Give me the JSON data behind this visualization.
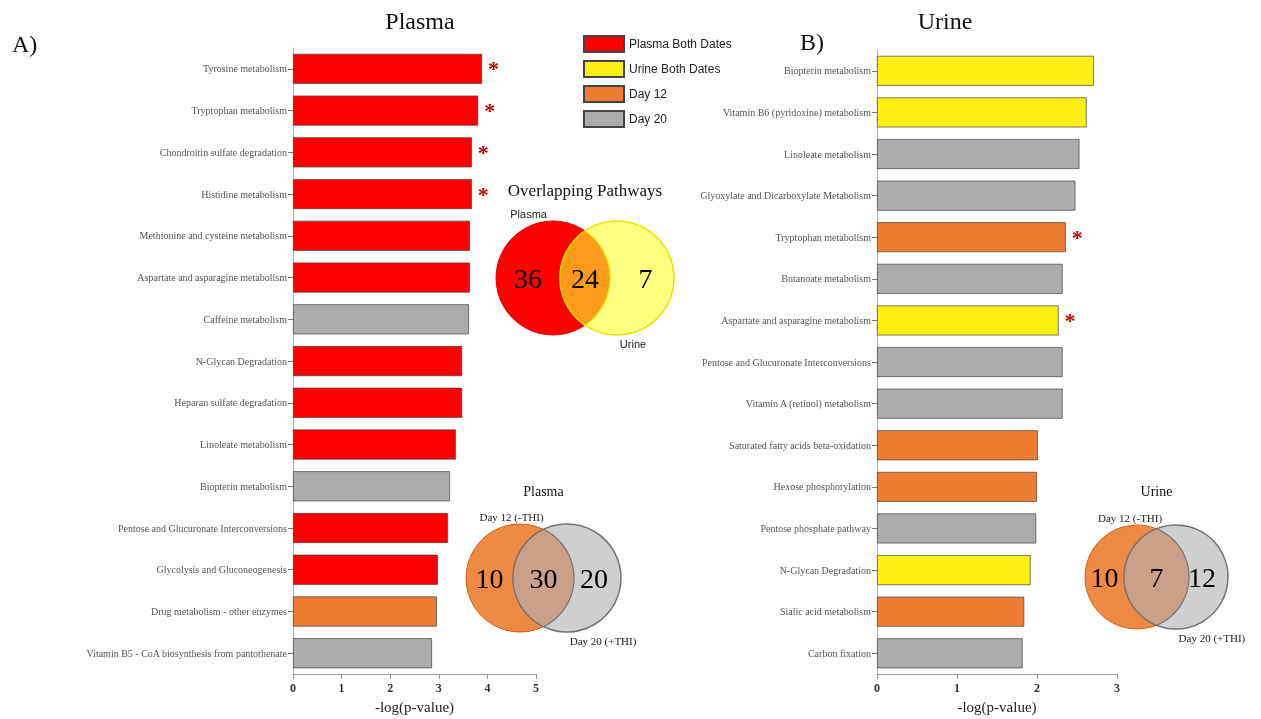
{
  "chart_data": [
    {
      "type": "bar",
      "orientation": "horizontal",
      "stacked": true,
      "title": "Plasma",
      "xlabel": "-log(p-value)",
      "legend": "top right",
      "grid": false,
      "categories": [
        "Tyrosine metabolism",
        "Tryptophan metabolism",
        "Chondroitin sulfate degradation",
        "Histidine metabolism",
        "Methionine and cysteine metabolism",
        "Aspartate and asparagine metabolism",
        "Caffeine metabolism",
        "N-Glycan Degradation",
        "Heparan sulfate degradation",
        "Linoleate metabolism",
        "Biopterin metabolism",
        "Pentose and Glucuronate Interconversions",
        "Glycolysis and Gluconeogenesis",
        "Drug metabolism - other enzymes",
        "Vitamin B5 - CoA biosynthesis from pantothenate"
      ],
      "series": [
        {
          "name": "Plasma Both Dates",
          "color": "#ff0000",
          "values": [
            3.89,
            3.81,
            3.68,
            3.68,
            3.64,
            3.64,
            null,
            3.48,
            3.48,
            3.35,
            null,
            3.19,
            2.98,
            null,
            null
          ],
          "value_labels": [
            "*",
            "*",
            "*",
            "*",
            null,
            null,
            null,
            null,
            null,
            null,
            null,
            null,
            null,
            null,
            null
          ]
        },
        {
          "name": "Urine Both Dates",
          "color": "#ffef14",
          "values": [
            null,
            null,
            null,
            null,
            null,
            null,
            null,
            null,
            null,
            null,
            null,
            null,
            null,
            null,
            null
          ]
        },
        {
          "name": "Day 12",
          "color": "#ed7d31",
          "values": [
            null,
            null,
            null,
            null,
            null,
            null,
            null,
            null,
            null,
            null,
            null,
            null,
            null,
            2.96,
            null
          ]
        },
        {
          "name": "Day 20",
          "color": "#adabab",
          "values": [
            null,
            null,
            null,
            null,
            null,
            null,
            3.62,
            null,
            null,
            null,
            3.23,
            null,
            null,
            null,
            2.86
          ]
        }
      ],
      "xlim": [
        0,
        5
      ],
      "xticks": [
        0,
        1,
        2,
        3,
        4,
        5
      ],
      "annotations": [
        "A)"
      ]
    },
    {
      "type": "bar",
      "orientation": "horizontal",
      "stacked": true,
      "title": "Urine",
      "xlabel": "-log(p-value)",
      "grid": false,
      "categories": [
        "Biopterin metabolism",
        "Vitamin B6 (pyridoxine) metabolism",
        "Linoleate metabolism",
        "Glyoxylate and Dicarboxylate Metabolism",
        "Tryptophan metabolism",
        "Butanoate metabolism",
        "Aspartate and asparagine metabolism",
        "Pentose and Glucuronate Interconversions",
        "Vitamin A (retinol) metabolism",
        "Saturated fatty acids beta-oxidation",
        "Hexose phosphorylation",
        "Pentose phosphate pathway",
        "N-Glycan Degradation",
        "Sialic acid metabolism",
        "Carbon fixation"
      ],
      "series": [
        {
          "color": "#ffef14",
          "values": [
            2.71,
            2.62,
            null,
            null,
            null,
            null,
            2.27,
            null,
            null,
            null,
            null,
            null,
            1.92,
            null,
            null
          ],
          "value_labels": [
            null,
            null,
            null,
            null,
            null,
            null,
            "*",
            null,
            null,
            null,
            null,
            null,
            null,
            null,
            null
          ]
        },
        {
          "color": "#ed7d31",
          "values": [
            null,
            null,
            null,
            null,
            2.36,
            null,
            null,
            null,
            null,
            2.01,
            2.0,
            null,
            null,
            1.84,
            null
          ],
          "value_labels": [
            null,
            null,
            null,
            null,
            "*",
            null,
            null,
            null,
            null,
            null,
            null,
            null,
            null,
            null,
            null
          ]
        },
        {
          "color": "#adabab",
          "values": [
            null,
            null,
            2.53,
            2.48,
            null,
            2.32,
            null,
            2.32,
            2.32,
            null,
            null,
            1.99,
            null,
            null,
            1.82
          ]
        }
      ],
      "xlim": [
        0,
        3
      ],
      "xticks": [
        0,
        1,
        2,
        3
      ],
      "annotations": [
        "B)"
      ]
    },
    {
      "type": "other",
      "title": "Overlapping Pathways",
      "categories": [
        "Plasma",
        null,
        "Urine"
      ],
      "values": [
        36,
        24,
        7
      ],
      "data_labels": true,
      "colors": [
        "#ff0000",
        "#ff9a1a",
        "#ffff80"
      ]
    },
    {
      "type": "other",
      "title": "Plasma",
      "categories": [
        "Day 12 (-THI)",
        null,
        "Day 20 (+THI)"
      ],
      "values": [
        10,
        30,
        20
      ],
      "data_labels": true,
      "colors": [
        "#ef8a45",
        "#c9a088",
        "#d0cfcf"
      ]
    },
    {
      "type": "other",
      "title": "Urine",
      "categories": [
        "Day 12 (-THI)",
        null,
        "Day 20 (+THI)"
      ],
      "values": [
        10,
        7,
        12
      ],
      "data_labels": true,
      "colors": [
        "#ef8a45",
        "#c9a088",
        "#d0cfcf"
      ]
    }
  ]
}
